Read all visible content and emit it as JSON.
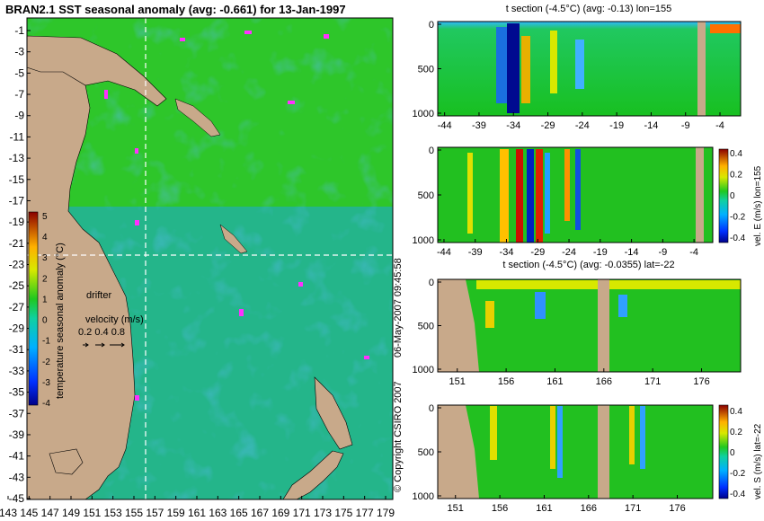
{
  "main_title": "BRAN2.1 SST seasonal anomaly (avg: -0.661) for 13-Jan-1997",
  "map": {
    "y_ticks": [
      "-1",
      "-3",
      "-5",
      "-7",
      "-9",
      "-11",
      "-13",
      "-15",
      "-17",
      "-19",
      "-21",
      "-23",
      "-25",
      "-27",
      "-29",
      "-31",
      "-33",
      "-35",
      "-37",
      "-39",
      "-41",
      "-43",
      "-45"
    ],
    "x_ticks": [
      "143",
      "145",
      "147",
      "149",
      "151",
      "153",
      "155",
      "157",
      "159",
      "161",
      "163",
      "165",
      "167",
      "169",
      "171",
      "173",
      "175",
      "177",
      "179"
    ],
    "colorbar_label": "temperature seasonal anomaly (°C)",
    "colorbar_ticks": [
      "5",
      "4",
      "3",
      "2",
      "1",
      "0",
      "-1",
      "-2",
      "-3",
      "-4"
    ],
    "drifter_label": "drifter",
    "velocity_label": "velocity (m/s)",
    "velocity_values": "0.2 0.4 0.8",
    "section_lon": "155",
    "section_lat": "-22"
  },
  "side_text": {
    "timestamp": "06-May-2007 09:45:58",
    "copyright": "© Copyright CSIRO 2007"
  },
  "panels": [
    {
      "title": "t section (-4.5°C) (avg: -0.13) lon=155",
      "x_ticks": [
        "-44",
        "-39",
        "-34",
        "-29",
        "-24",
        "-19",
        "-14",
        "-9",
        "-4"
      ],
      "y_ticks": [
        "0",
        "500",
        "1000"
      ],
      "colorbar_label": "",
      "colorbar_ticks": []
    },
    {
      "title": "",
      "x_ticks": [
        "-44",
        "-39",
        "-34",
        "-29",
        "-24",
        "-19",
        "-14",
        "-9",
        "-4"
      ],
      "y_ticks": [
        "0",
        "500",
        "1000"
      ],
      "colorbar_label": "vel. E (m/s) lon=155",
      "colorbar_ticks": [
        "0.4",
        "0.2",
        "0",
        "-0.2",
        "-0.4"
      ]
    },
    {
      "title": "t section (-4.5°C) (avg: -0.0355) lat=-22",
      "x_ticks": [
        "151",
        "156",
        "161",
        "166",
        "171",
        "176"
      ],
      "y_ticks": [
        "0",
        "500",
        "1000"
      ],
      "colorbar_label": "",
      "colorbar_ticks": []
    },
    {
      "title": "",
      "x_ticks": [
        "151",
        "156",
        "161",
        "166",
        "171",
        "176"
      ],
      "y_ticks": [
        "0",
        "500",
        "1000"
      ],
      "colorbar_label": "vel. S (m/s) lat=-22",
      "colorbar_ticks": [
        "0.4",
        "0.2",
        "0",
        "-0.2",
        "-0.4"
      ]
    }
  ],
  "chart_data": [
    {
      "type": "heatmap",
      "title": "BRAN2.1 SST seasonal anomaly (avg: -0.661) for 13-Jan-1997",
      "x_ticks": [
        143,
        145,
        147,
        149,
        151,
        153,
        155,
        157,
        159,
        161,
        163,
        165,
        167,
        169,
        171,
        173,
        175,
        177,
        179
      ],
      "y_ticks": [
        -1,
        -3,
        -5,
        -7,
        -9,
        -11,
        -13,
        -15,
        -17,
        -19,
        -21,
        -23,
        -25,
        -27,
        -29,
        -31,
        -33,
        -35,
        -37,
        -39,
        -41,
        -43,
        -45
      ],
      "color_range": [
        -4,
        5
      ],
      "colorbar_label": "temperature seasonal anomaly (°C)",
      "average": -0.661
    },
    {
      "type": "heatmap",
      "title": "t section (-4.5°C) (avg: -0.13) lon=155",
      "average": -0.13,
      "x_ticks": [
        -44,
        -39,
        -34,
        -29,
        -24,
        -19,
        -14,
        -9,
        -4
      ],
      "y_ticks": [
        0,
        500,
        1000
      ],
      "xlim": [
        -45,
        -1
      ],
      "ylim": [
        1000,
        0
      ]
    },
    {
      "type": "heatmap",
      "x_ticks": [
        -44,
        -39,
        -34,
        -29,
        -24,
        -19,
        -14,
        -9,
        -4
      ],
      "y_ticks": [
        0,
        500,
        1000
      ],
      "color_range": [
        -0.4,
        0.4
      ],
      "colorbar_label": "vel. E (m/s) lon=155"
    },
    {
      "type": "heatmap",
      "title": "t section (-4.5°C) (avg: -0.0355) lat=-22",
      "average": -0.0355,
      "x_ticks": [
        151,
        156,
        161,
        166,
        171,
        176
      ],
      "y_ticks": [
        0,
        500,
        1000
      ],
      "xlim": [
        149,
        180
      ],
      "ylim": [
        1000,
        0
      ]
    },
    {
      "type": "heatmap",
      "x_ticks": [
        151,
        156,
        161,
        166,
        171,
        176
      ],
      "y_ticks": [
        0,
        500,
        1000
      ],
      "color_range": [
        -0.4,
        0.4
      ],
      "colorbar_label": "vel. S (m/s) lat=-22"
    }
  ],
  "colors": {
    "land": "#c8a98a",
    "background_anomaly": "#22c422",
    "drifter": "#ff30ff",
    "section_line": "#ffffff"
  }
}
